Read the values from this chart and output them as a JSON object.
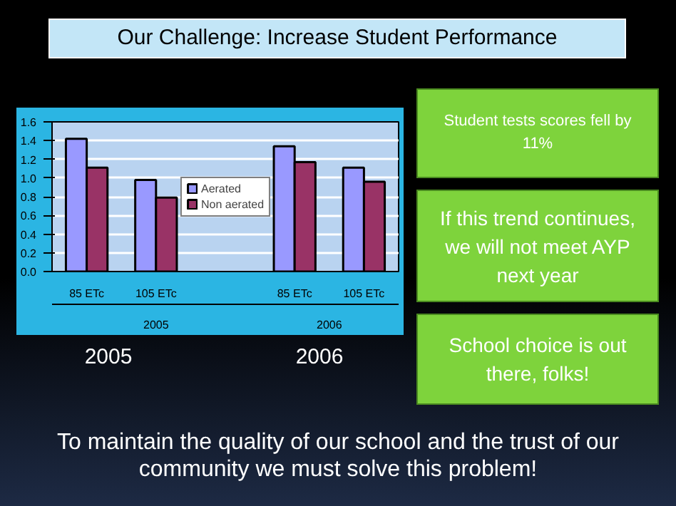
{
  "chart_data": {
    "type": "bar",
    "title": "Our Challenge: Increase Student Performance",
    "categories": [
      "85 ETc",
      "105 ETc",
      null,
      "85 ETc",
      "105 ETc"
    ],
    "series": [
      {
        "name": "Aerated",
        "color": "#9999ff",
        "values": [
          1.42,
          0.98,
          null,
          1.34,
          1.11
        ]
      },
      {
        "name": "Non aerated",
        "color": "#993366",
        "values": [
          1.11,
          0.79,
          null,
          1.17,
          0.96
        ]
      }
    ],
    "ylim": [
      0,
      1.6
    ],
    "yticks": [
      {
        "value": 0,
        "label": "0.0"
      },
      0.2,
      0.4,
      0.6,
      0.8,
      {
        "value": 1,
        "label": "1.0"
      },
      1.2,
      1.4,
      1.6
    ],
    "grid": "y",
    "legend": "center",
    "annotations": [
      "2005",
      "2006",
      "2005",
      "2006",
      "Student tests scores fell by 11%",
      "If this trend continues, we will not meet AYP next year",
      "School choice is out there, folks!",
      "To maintain the quality of our school and the trust of our community we must solve this problem!"
    ]
  }
}
